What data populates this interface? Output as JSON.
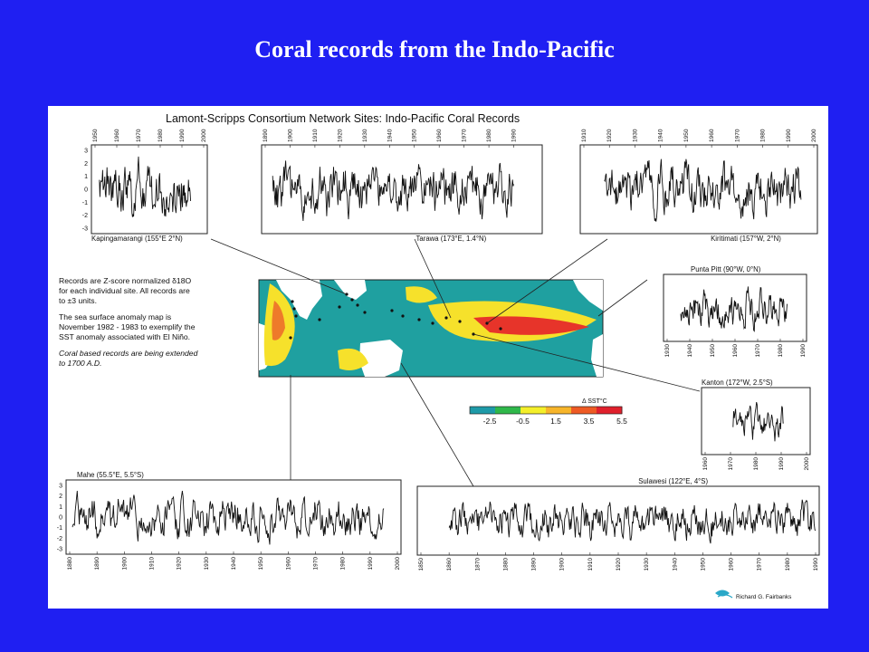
{
  "slide": {
    "title": "Coral records from the Indo-Pacific",
    "background": "#1f1ff2"
  },
  "figure": {
    "title": "Lamont-Scripps Consortium Network Sites: Indo-Pacific Coral Records",
    "notes": [
      "Records are Z-score normalized δ18O",
      "for each individual site.  All records are",
      "to ±3 units.",
      "The sea surface anomaly map is",
      "November 1982 - 1983 to exemplify the",
      "SST anomaly associated with El Niño.",
      "Coral based records are being extended",
      "to 1700 A.D."
    ],
    "credit": "Richard G. Fairbanks"
  },
  "map": {
    "colorbar_label": "Δ SST°C",
    "colorbar_ticks": [
      "-2.5",
      "-0.5",
      "1.5",
      "3.5",
      "5.5"
    ],
    "colorbar_colors": [
      "#1e9aa8",
      "#2fb84a",
      "#f4ef2a",
      "#f7b52a",
      "#ee5a24",
      "#e0202c"
    ],
    "colors": {
      "land": "#ffffff",
      "ocean": "#1fa0a0",
      "warm": "#f6e12b",
      "hot": "#e7342a"
    }
  },
  "chart_data": [
    {
      "type": "line",
      "name": "Kapingamarangi (155°E 2°N)",
      "xlim": [
        1950,
        2000
      ],
      "ylim": [
        -3,
        3
      ],
      "x_ticks": [
        1950,
        1960,
        1970,
        1980,
        1990,
        2000
      ],
      "y_ticks": [
        3,
        2,
        1,
        0,
        -1,
        -2,
        -3
      ],
      "x_range": [
        1952,
        1994
      ],
      "seed": 11
    },
    {
      "type": "line",
      "name": "Tarawa (173°E, 1.4°N)",
      "xlim": [
        1890,
        2000
      ],
      "ylim": [
        -3,
        3
      ],
      "x_ticks": [
        1890,
        1900,
        1910,
        1920,
        1930,
        1940,
        1950,
        1960,
        1970,
        1980,
        1990
      ],
      "y_ticks": [],
      "x_range": [
        1893,
        1990
      ],
      "seed": 23
    },
    {
      "type": "line",
      "name": "Kiritimati (157°W, 2°N)",
      "xlim": [
        1910,
        2000
      ],
      "ylim": [
        -3,
        3
      ],
      "x_ticks": [
        1910,
        1920,
        1930,
        1940,
        1950,
        1960,
        1970,
        1980,
        1990,
        2000
      ],
      "y_ticks": [],
      "x_range": [
        1918,
        1995
      ],
      "seed": 37
    },
    {
      "type": "line",
      "name": "Punta Pitt (90°W, 0°N)",
      "xlim": [
        1930,
        1990
      ],
      "ylim": [
        -3,
        3
      ],
      "x_ticks": [
        1930,
        1940,
        1950,
        1960,
        1970,
        1980,
        1990
      ],
      "y_ticks": [],
      "x_range": [
        1936,
        1983
      ],
      "seed": 41
    },
    {
      "type": "line",
      "name": "Kanton (172°W, 2.5°S)",
      "xlim": [
        1960,
        2000
      ],
      "ylim": [
        -3,
        3
      ],
      "x_ticks": [
        1960,
        1970,
        1980,
        1990,
        2000
      ],
      "y_ticks": [],
      "x_range": [
        1971,
        1991
      ],
      "seed": 53
    },
    {
      "type": "line",
      "name": "Mahe (55.5°E, 5.5°S)",
      "xlim": [
        1880,
        2000
      ],
      "ylim": [
        -3,
        3
      ],
      "x_ticks": [
        1880,
        1890,
        1900,
        1910,
        1920,
        1930,
        1940,
        1950,
        1960,
        1970,
        1980,
        1990,
        2000
      ],
      "y_ticks": [
        3,
        2,
        1,
        0,
        -1,
        -2,
        -3
      ],
      "x_range": [
        1881,
        1995
      ],
      "seed": 67
    },
    {
      "type": "line",
      "name": "Sulawesi (122°E, 4°S)",
      "xlim": [
        1850,
        1990
      ],
      "ylim": [
        -3,
        3
      ],
      "x_ticks": [
        1850,
        1860,
        1870,
        1880,
        1890,
        1900,
        1910,
        1920,
        1930,
        1940,
        1950,
        1960,
        1970,
        1980,
        1990
      ],
      "y_ticks": [],
      "x_range": [
        1860,
        1990
      ],
      "seed": 79
    }
  ]
}
